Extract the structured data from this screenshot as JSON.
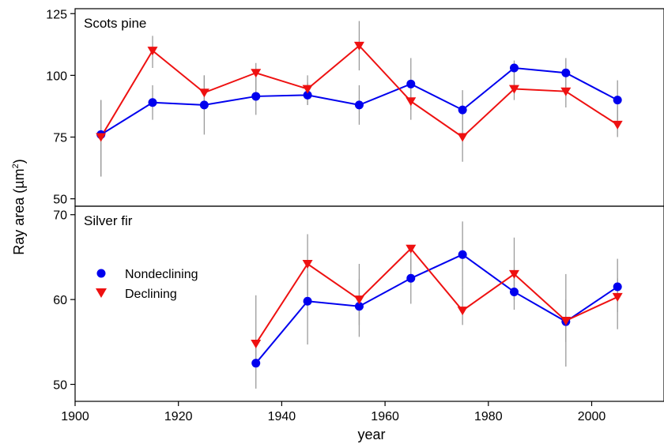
{
  "chart_data": {
    "type": "line",
    "xlabel": "year",
    "ylabel_main": "Ray area (µm",
    "ylabel_sup": "2",
    "ylabel_close": ")",
    "x_ticks": [
      "1900",
      "1920",
      "1940",
      "1960",
      "1980",
      "2000"
    ],
    "xlim": [
      1900,
      2014
    ],
    "legend": {
      "position": "left",
      "entries": [
        {
          "label": "Nondeclining",
          "marker": "circle",
          "color": "#0000ee"
        },
        {
          "label": "Declining",
          "marker": "triangle-down",
          "color": "#ee1111"
        }
      ]
    },
    "panels": [
      {
        "label": "Scots pine",
        "ylim": [
          47,
          127
        ],
        "y_ticks": [
          "50",
          "75",
          "100",
          "125"
        ],
        "series": [
          {
            "name": "Nondeclining",
            "color": "#0000ee",
            "marker": "circle",
            "x": [
              1905,
              1915,
              1925,
              1935,
              1945,
              1955,
              1965,
              1975,
              1985,
              1995,
              2005
            ],
            "y": [
              76,
              89,
              88,
              91.5,
              92,
              88,
              96.5,
              86,
              103,
              101,
              90
            ],
            "err_low": [
              59,
              82,
              76,
              84,
              88,
              80,
              86,
              78,
              94,
              92,
              82
            ],
            "err_high": [
              90,
              96,
              100,
              99,
              97,
              96,
              107,
              94,
              106,
              107,
              98
            ]
          },
          {
            "name": "Declining",
            "color": "#ee1111",
            "marker": "triangle-down",
            "x": [
              1905,
              1915,
              1925,
              1935,
              1945,
              1955,
              1965,
              1975,
              1985,
              1995,
              2005
            ],
            "y": [
              75,
              110,
              93,
              101,
              94.5,
              112,
              89.5,
              75,
              94.5,
              93.5,
              80
            ],
            "err_low": [
              59,
              103,
              86,
              94,
              88,
              102,
              82,
              65,
              90,
              87,
              75
            ],
            "err_high": [
              90,
              116,
              100,
              105,
              100,
              122,
              97,
              86,
              102,
              100,
              86
            ]
          }
        ]
      },
      {
        "label": "Silver fir",
        "ylim": [
          48,
          71
        ],
        "y_ticks": [
          "50",
          "60",
          "70"
        ],
        "series": [
          {
            "name": "Nondeclining",
            "color": "#0000ee",
            "marker": "circle",
            "x": [
              1935,
              1945,
              1955,
              1965,
              1975,
              1985,
              1995,
              2005
            ],
            "y": [
              52.5,
              59.8,
              59.2,
              62.5,
              65.3,
              60.9,
              57.4,
              61.5
            ],
            "err_low": [
              49.5,
              54.7,
              55.6,
              59.5,
              61.5,
              58.8,
              52.1,
              56.5
            ],
            "err_high": [
              54.7,
              63.0,
              62.4,
              64.8,
              69.2,
              63.5,
              60.0,
              64.8
            ]
          },
          {
            "name": "Declining",
            "color": "#ee1111",
            "marker": "triangle-down",
            "x": [
              1935,
              1945,
              1955,
              1965,
              1975,
              1985,
              1995,
              2005
            ],
            "y": [
              54.8,
              64.2,
              60.0,
              66.0,
              58.7,
              63.0,
              57.5,
              60.3
            ],
            "err_low": [
              52.0,
              60.5,
              57.0,
              63.5,
              57.0,
              60.0,
              55.0,
              58.5
            ],
            "err_high": [
              60.5,
              67.7,
              64.2,
              66.2,
              61.5,
              67.3,
              63.0,
              62.5
            ]
          }
        ]
      }
    ]
  }
}
